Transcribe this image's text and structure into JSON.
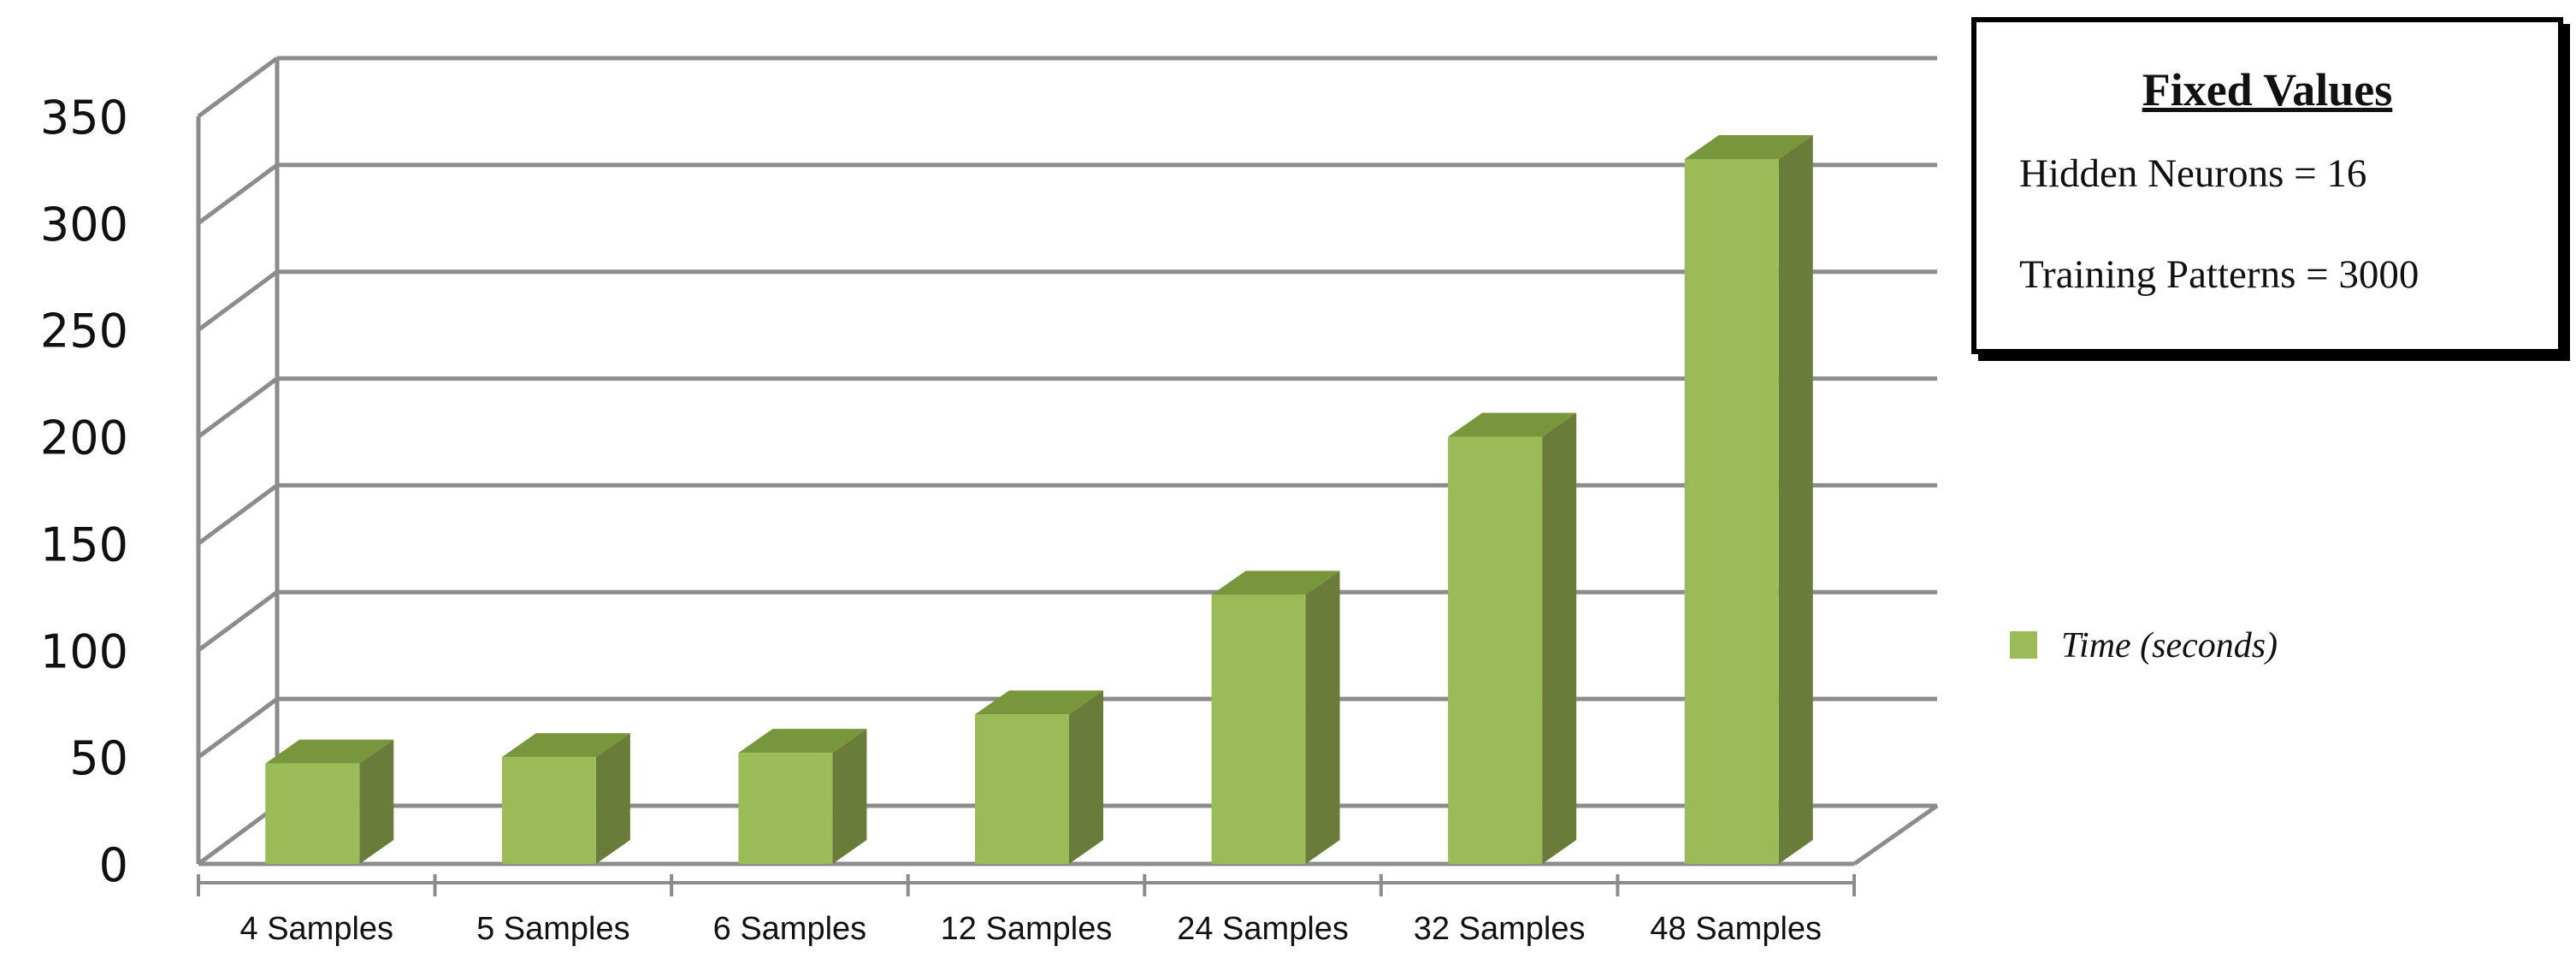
{
  "chart_data": {
    "type": "bar",
    "categories": [
      "4 Samples",
      "5 Samples",
      "6 Samples",
      "12 Samples",
      "24 Samples",
      "32 Samples",
      "48 Samples"
    ],
    "series": [
      {
        "name": "Time (seconds)",
        "values": [
          47,
          50,
          52,
          70,
          126,
          200,
          330
        ]
      }
    ],
    "yticks": [
      0,
      50,
      100,
      150,
      200,
      250,
      300,
      350
    ],
    "ylim": [
      0,
      350
    ],
    "grid": true,
    "legend_position": "right",
    "colors": {
      "bar_front": "#9bbb59",
      "bar_side": "#6a7c3a",
      "bar_top": "#78963c",
      "grid": "#8c8c8c"
    },
    "annotation": {
      "title": "Fixed Values",
      "lines": [
        "Hidden Neurons = 16",
        "Training Patterns = 3000"
      ]
    }
  }
}
